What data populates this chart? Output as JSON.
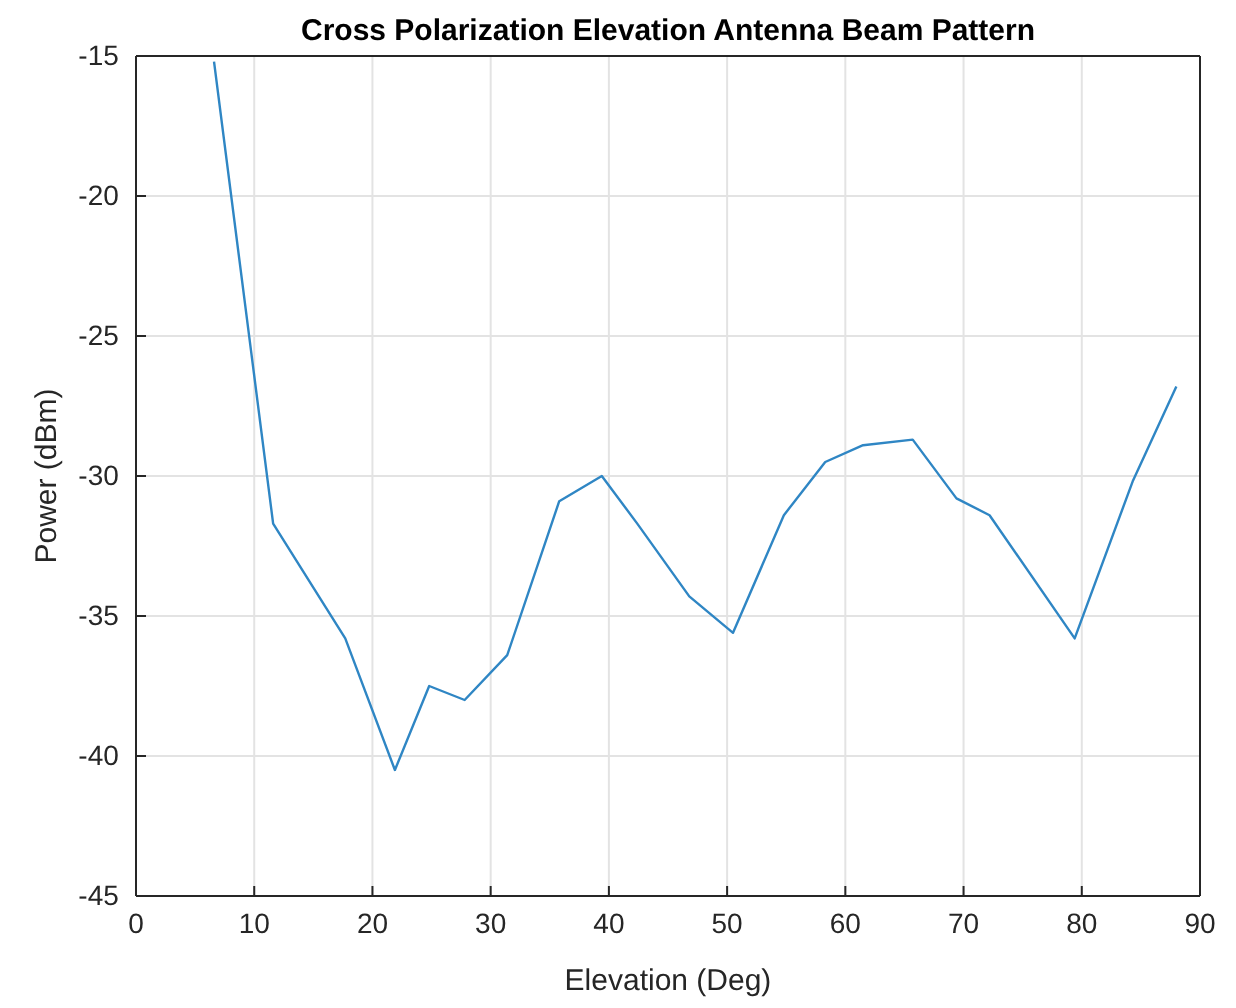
{
  "chart_data": {
    "type": "line",
    "title": "Cross Polarization Elevation Antenna Beam Pattern",
    "xlabel": "Elevation (Deg)",
    "ylabel": "Power (dBm)",
    "x": [
      6.6,
      11.6,
      17.7,
      21.9,
      24.8,
      27.8,
      31.4,
      35.8,
      39.4,
      42.4,
      46.8,
      50.5,
      54.8,
      58.3,
      61.5,
      65.7,
      69.4,
      72.2,
      79.4,
      84.3,
      88.0
    ],
    "series": [
      {
        "color": "#2f86c4",
        "values": [
          -15.2,
          -31.7,
          -35.8,
          -40.5,
          -37.5,
          -38.0,
          -36.4,
          -30.9,
          -30.0,
          -31.7,
          -34.3,
          -35.6,
          -31.4,
          -29.5,
          -28.9,
          -28.7,
          -30.8,
          -31.4,
          -35.8,
          -30.2,
          -26.8
        ]
      }
    ],
    "xlim": [
      0,
      90
    ],
    "xticks": [
      0,
      10,
      20,
      30,
      40,
      50,
      60,
      70,
      80,
      90
    ],
    "ylim": [
      -45,
      -15
    ],
    "yticks": [
      -45,
      -40,
      -35,
      -30,
      -25,
      -20,
      -15
    ],
    "grid": true,
    "marker": "none",
    "line_style": "solid"
  }
}
